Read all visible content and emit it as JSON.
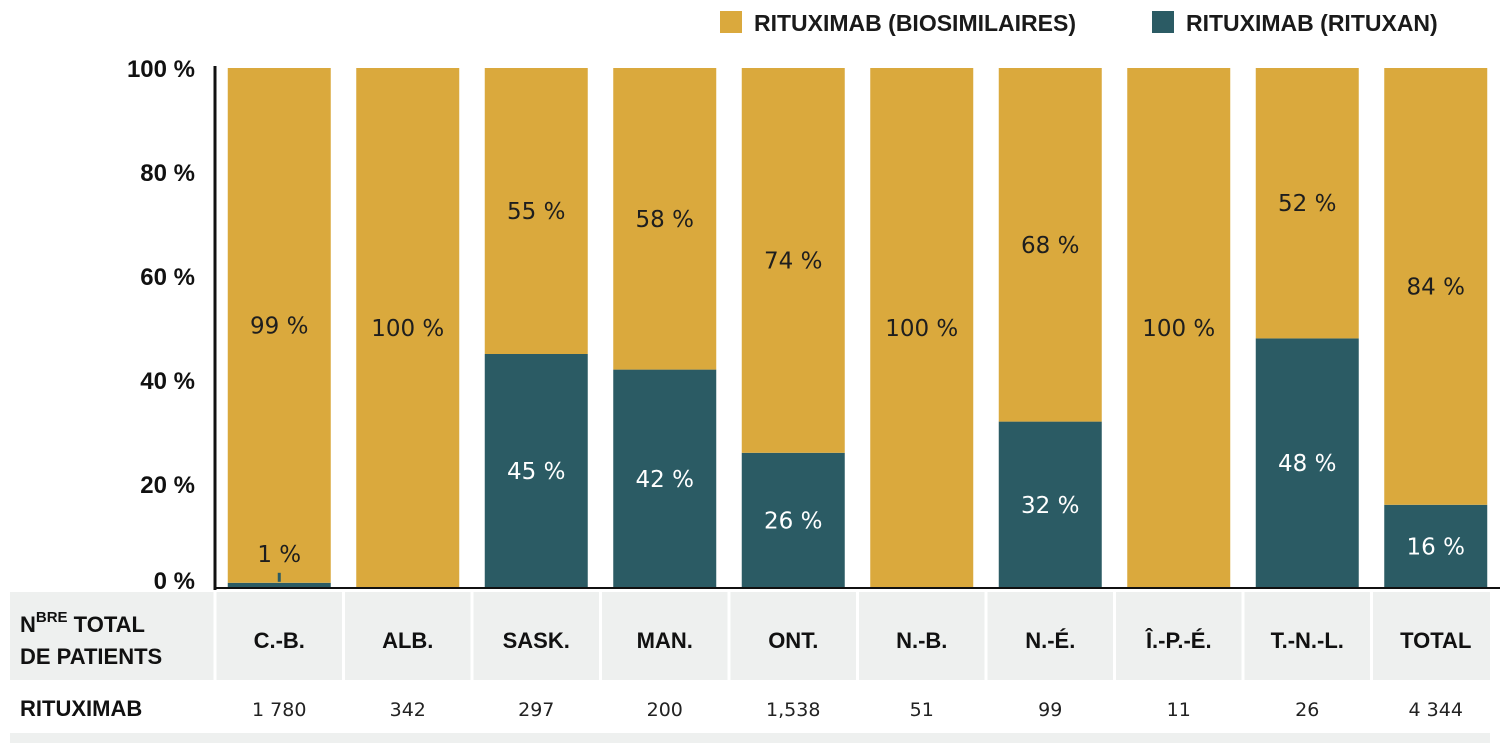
{
  "colors": {
    "biosimilar": "#daa93d",
    "rituxan": "#2b5b64",
    "table_bg": "#eef0ef",
    "separator": "#ffffff",
    "axis": "#111111"
  },
  "table": {
    "header_line1": "N",
    "header_sup": "BRE",
    "header_line1_rest": " TOTAL",
    "header_line2": "DE PATIENTS",
    "row_label": "RITUXIMAB"
  },
  "chart_data": {
    "type": "bar",
    "stacked": true,
    "categories": [
      "C.-B.",
      "ALB.",
      "SASK.",
      "MAN.",
      "ONT.",
      "N.-B.",
      "N.-É.",
      "Î.-P.-É.",
      "T.-N.-L.",
      "TOTAL"
    ],
    "series": [
      {
        "name": "RITUXIMAB (RITUXAN)",
        "color": "#2b5b64",
        "values": [
          1,
          0,
          45,
          42,
          26,
          0,
          32,
          0,
          48,
          16
        ],
        "labels": [
          "1 %",
          "",
          "45 %",
          "42 %",
          "26 %",
          "",
          "32 %",
          "",
          "48 %",
          "16 %"
        ]
      },
      {
        "name": "RITUXIMAB (BIOSIMILAIRES)",
        "color": "#daa93d",
        "values": [
          99,
          100,
          55,
          58,
          74,
          100,
          68,
          100,
          52,
          84
        ],
        "labels": [
          "99 %",
          "100 %",
          "55 %",
          "58 %",
          "74 %",
          "100 %",
          "68 %",
          "100 %",
          "52 %",
          "84 %"
        ]
      }
    ],
    "legend_order": [
      "RITUXIMAB (BIOSIMILAIRES)",
      "RITUXIMAB (RITUXAN)"
    ],
    "legend_position": "top-right",
    "y_ticks": [
      "0 %",
      "20 %",
      "40 %",
      "60 %",
      "80 %",
      "100 %"
    ],
    "y_tick_values": [
      0,
      20,
      40,
      60,
      80,
      100
    ],
    "ylim": [
      0,
      100
    ],
    "grid": false,
    "patient_counts": [
      "1 780",
      "342",
      "297",
      "200",
      "1,538",
      "51",
      "99",
      "11",
      "26",
      "4 344"
    ]
  }
}
